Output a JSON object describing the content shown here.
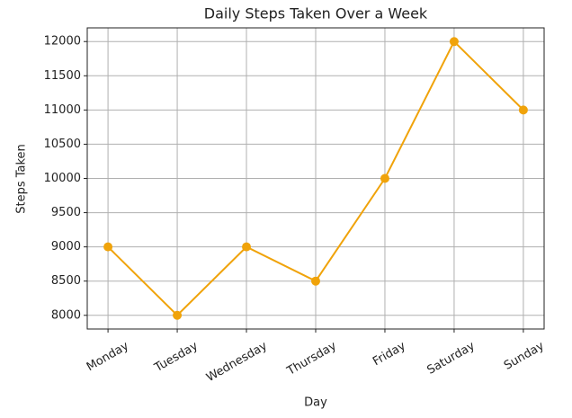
{
  "chart_data": {
    "type": "line",
    "title": "Daily Steps Taken Over a Week",
    "x_label": "Day",
    "y_label": "Steps Taken",
    "categories": [
      "Monday",
      "Tuesday",
      "Wednesday",
      "Thursday",
      "Friday",
      "Saturday",
      "Sunday"
    ],
    "values": [
      9000,
      8000,
      9000,
      8500,
      10000,
      12000,
      11000
    ],
    "color": "#f0a30a",
    "marker": "o",
    "ylim": [
      7800,
      12200
    ],
    "yticks": [
      8000,
      8500,
      9000,
      9500,
      10000,
      10500,
      11000,
      11500,
      12000
    ],
    "grid": true
  }
}
